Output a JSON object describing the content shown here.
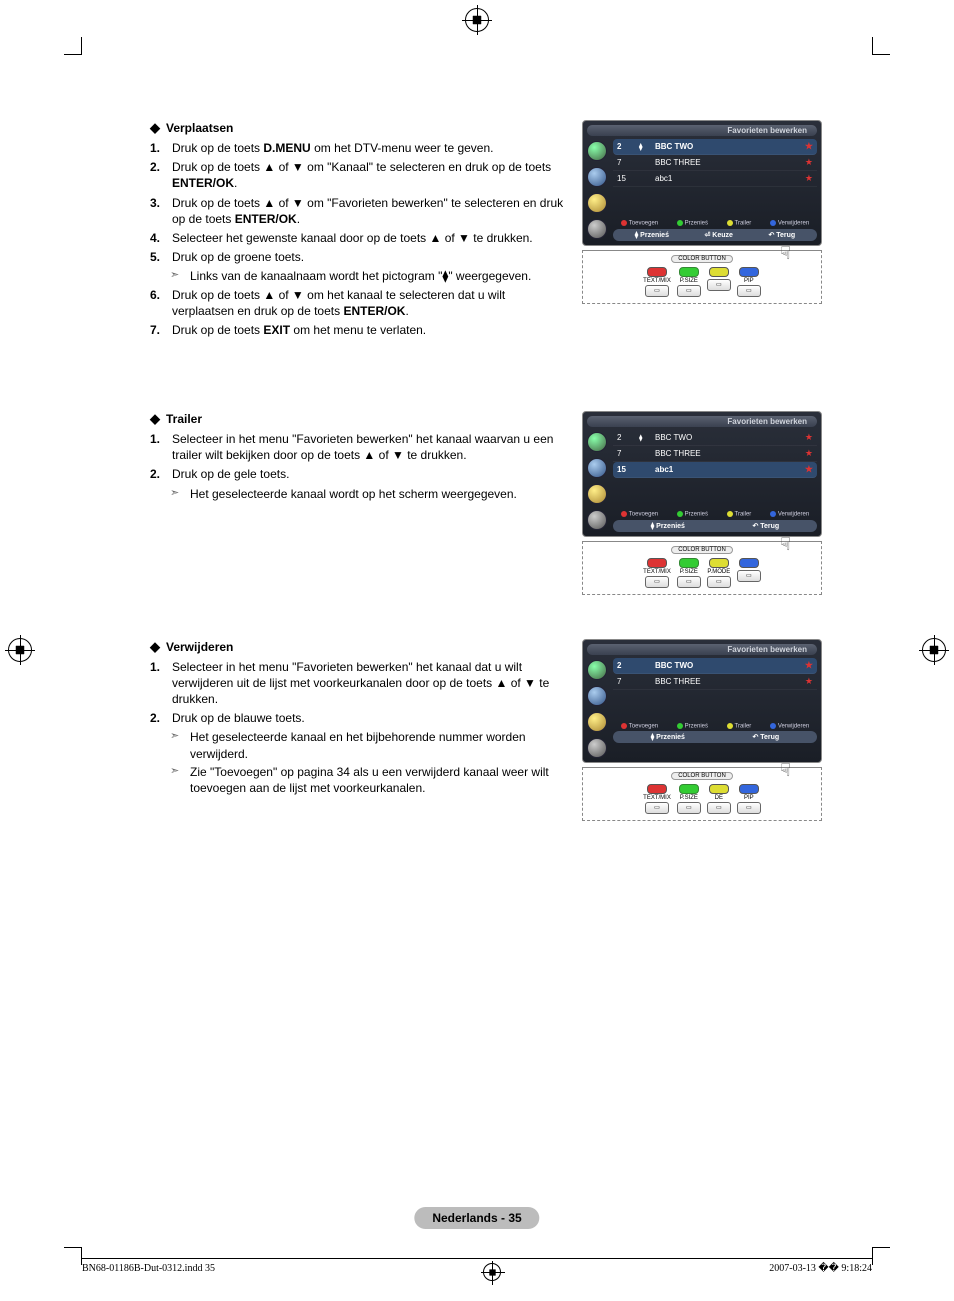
{
  "registerMarks": true,
  "sections": [
    {
      "key": "verplaatsen",
      "heading": "Verplaatsen",
      "steps": [
        {
          "n": "1.",
          "html": "Druk op de toets <b>D.MENU</b> om het DTV-menu weer te geven."
        },
        {
          "n": "2.",
          "html": "Druk op de toets ▲ of ▼ om \"Kanaal\" te selecteren en druk op de toets <b>ENTER/OK</b>."
        },
        {
          "n": "3.",
          "html": "Druk op de toets ▲ of ▼ om \"Favorieten bewerken\" te selecteren en druk op de toets <b>ENTER/OK</b>."
        },
        {
          "n": "4.",
          "html": "Selecteer het gewenste kanaal door op de toets ▲ of ▼ te drukken."
        },
        {
          "n": "5.",
          "html": "Druk op de groene toets.",
          "sub": [
            "Links van de kanaalnaam wordt het pictogram \"⧫\" weergegeven."
          ]
        },
        {
          "n": "6.",
          "html": "Druk op de toets ▲ of ▼ om het kanaal te selecteren dat u wilt verplaatsen en druk op de toets <b>ENTER/OK</b>."
        },
        {
          "n": "7.",
          "html": "Druk op de toets <b>EXIT</b> om het menu te verlaten."
        }
      ],
      "osd": {
        "title": "Favorieten bewerken",
        "rows": [
          {
            "ch": "2",
            "sym": "⧫",
            "name": "BBC TWO",
            "sel": true,
            "star": true
          },
          {
            "ch": "7",
            "sym": "",
            "name": "BBC THREE",
            "sel": false,
            "star": true
          },
          {
            "ch": "15",
            "sym": "",
            "name": "abc1",
            "sel": false,
            "star": true
          }
        ],
        "legend": [
          "Toevoegen",
          "Przenieś",
          "Trailer",
          "Verwijderen"
        ],
        "bottom": [
          "⧫ Przenieś",
          "⏎ Keuze",
          "↶ Terug"
        ]
      },
      "remote": {
        "labels": [
          "TEXT/MIX",
          "P.SIZE",
          "",
          "PIP"
        ],
        "caps": [
          "red",
          "green",
          "yellow",
          "blue"
        ]
      }
    },
    {
      "key": "trailer",
      "heading": "Trailer",
      "steps": [
        {
          "n": "1.",
          "html": "Selecteer in het menu \"Favorieten bewerken\" het kanaal waarvan u een trailer wilt bekijken door op de toets ▲ of ▼ te drukken."
        },
        {
          "n": "2.",
          "html": "Druk op de gele toets.",
          "sub": [
            "Het geselecteerde kanaal wordt op het scherm weergegeven."
          ]
        }
      ],
      "osd": {
        "title": "Favorieten bewerken",
        "rows": [
          {
            "ch": "2",
            "sym": "⧫",
            "name": "BBC TWO",
            "sel": false,
            "star": true
          },
          {
            "ch": "7",
            "sym": "",
            "name": "BBC THREE",
            "sel": false,
            "star": true
          },
          {
            "ch": "15",
            "sym": "",
            "name": "abc1",
            "sel": true,
            "star": true
          }
        ],
        "legend": [
          "Toevoegen",
          "Przenieś",
          "Trailer",
          "Verwijderen"
        ],
        "bottom": [
          "⧫ Przenieś",
          "↶ Terug"
        ]
      },
      "remote": {
        "labels": [
          "TEXT/MIX",
          "P.SIZE",
          "P.MODE",
          ""
        ],
        "caps": [
          "red",
          "green",
          "yellow",
          "blue"
        ]
      }
    },
    {
      "key": "verwijderen",
      "heading": "Verwijderen",
      "steps": [
        {
          "n": "1.",
          "html": "Selecteer in het menu \"Favorieten bewerken\" het kanaal dat u wilt verwijderen uit de lijst met voorkeurkanalen door op de toets ▲ of ▼ te drukken."
        },
        {
          "n": "2.",
          "html": "Druk op de blauwe toets.",
          "sub": [
            "Het geselecteerde kanaal en het bijbehorende nummer worden verwijderd.",
            "Zie \"Toevoegen\" op pagina 34 als u een verwijderd kanaal weer wilt toevoegen aan de lijst met voorkeurkanalen."
          ]
        }
      ],
      "osd": {
        "title": "Favorieten bewerken",
        "rows": [
          {
            "ch": "2",
            "sym": "",
            "name": "BBC TWO",
            "sel": true,
            "star": true
          },
          {
            "ch": "7",
            "sym": "",
            "name": "BBC THREE",
            "sel": false,
            "star": true
          }
        ],
        "legend": [
          "Toevoegen",
          "Przenieś",
          "Trailer",
          "Verwijderen"
        ],
        "bottom": [
          "⧫ Przenieś",
          "↶ Terug"
        ]
      },
      "remote": {
        "labels": [
          "TEXT/MIX",
          "P.SIZE",
          "DE",
          "PIP"
        ],
        "caps": [
          "red",
          "green",
          "yellow",
          "blue"
        ]
      }
    }
  ],
  "pageBadge": "Nederlands - 35",
  "footer": {
    "left": "BN68-01186B-Dut-0312.indd   35",
    "right": "2007-03-13   �� 9:18:24"
  },
  "colorButtonLabel": "COLOR BUTTON",
  "legendColors": [
    "r",
    "g",
    "y",
    "b"
  ]
}
